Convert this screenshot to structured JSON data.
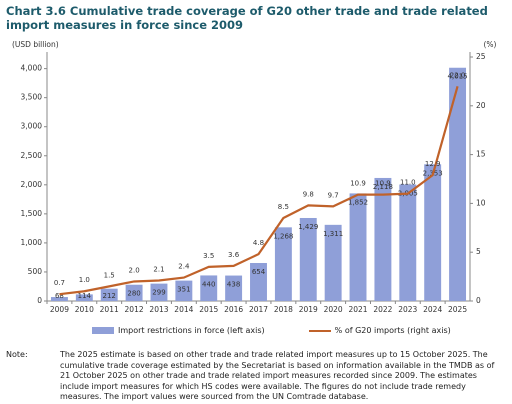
{
  "chart_data": {
    "type": "bar-line",
    "title": "Chart 3.6 Cumulative trade coverage of G20 other trade and trade related import measures in force since 2009",
    "y_label": "(USD billion)",
    "y2_label": "(%)",
    "categories": [
      "2009",
      "2010",
      "2011",
      "2012",
      "2013",
      "2014",
      "2015",
      "2016",
      "2017",
      "2018",
      "2019",
      "2020",
      "2021",
      "2022",
      "2023",
      "2024",
      "2025"
    ],
    "series": [
      {
        "name": "Import restrictions in force (left axis)",
        "color": "#8f9fd8",
        "type": "bar",
        "values": [
          68,
          114,
          212,
          280,
          299,
          351,
          440,
          438,
          654,
          1268,
          1429,
          1311,
          1852,
          2118,
          2005,
          2353,
          4015
        ],
        "value_labels": [
          "68",
          "114",
          "212",
          "280",
          "299",
          "351",
          "440",
          "438",
          "654",
          "1,268",
          "1,429",
          "1,311",
          "1,852",
          "2,118",
          "2,005",
          "2,353",
          "4,015"
        ]
      },
      {
        "name": "% of G20 imports (right axis)",
        "color": "#c0622a",
        "type": "line",
        "axis": "y2",
        "values": [
          0.7,
          1.0,
          1.5,
          2.0,
          2.1,
          2.4,
          3.5,
          3.6,
          4.8,
          8.5,
          9.8,
          9.7,
          10.9,
          10.9,
          11.0,
          12.9,
          22.0
        ],
        "value_labels": [
          "0.7",
          "1.0",
          "1.5",
          "2.0",
          "2.1",
          "2.4",
          "3.5",
          "3.6",
          "4.8",
          "8.5",
          "9.8",
          "9.7",
          "10.9",
          "10.9",
          "11.0",
          "12.9",
          "22.0"
        ]
      }
    ],
    "ylim": [
      0,
      4200
    ],
    "yticks": [
      0,
      500,
      {
        "value": 1000,
        "label": "1,000"
      },
      {
        "value": 1500,
        "label": "1,500"
      },
      {
        "value": 2000,
        "label": "2,000"
      },
      {
        "value": 2500,
        "label": "2,500"
      },
      {
        "value": 3000,
        "label": "3,000"
      },
      {
        "value": 3500,
        "label": "3,500"
      },
      {
        "value": 4000,
        "label": "4,000"
      }
    ],
    "y2lim": [
      0,
      25
    ],
    "y2ticks": [
      0,
      5,
      10,
      15,
      20,
      25
    ],
    "grid": false,
    "note_label": "Note:",
    "note": "The 2025 estimate is based on other trade and trade related import measures up to 15 October 2025. The cumulative trade coverage estimated by the Secretariat is based on information available in the TMDB as of 21 October 2025 on other trade and trade related import measures recorded since 2009. The estimates include import measures for which HS codes were available. The figures do not include trade remedy measures. The import values were sourced from the UN Comtrade database."
  }
}
